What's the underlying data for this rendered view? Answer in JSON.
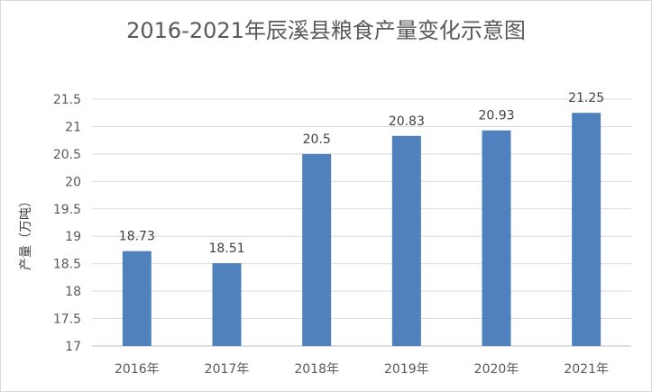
{
  "chart_data": {
    "type": "bar",
    "title": "2016-2021年辰溪县粮食产量变化示意图",
    "ylabel": "产量（万吨）",
    "xlabel": "",
    "categories": [
      "2016年",
      "2017年",
      "2018年",
      "2019年",
      "2020年",
      "2021年"
    ],
    "values": [
      18.73,
      18.51,
      20.5,
      20.83,
      20.93,
      21.25
    ],
    "data_labels": [
      "18.73",
      "18.51",
      "20.5",
      "20.83",
      "20.93",
      "21.25"
    ],
    "ylim": [
      17,
      21.5
    ],
    "yticks": [
      17,
      17.5,
      18,
      18.5,
      19,
      19.5,
      20,
      20.5,
      21,
      21.5
    ],
    "ytick_labels": [
      "17",
      "17.5",
      "18",
      "18.5",
      "19",
      "19.5",
      "20",
      "20.5",
      "21",
      "21.5"
    ],
    "grid": true,
    "legend": "none",
    "bar_color": "#4f81bd",
    "grid_color": "#d9d9d9"
  }
}
